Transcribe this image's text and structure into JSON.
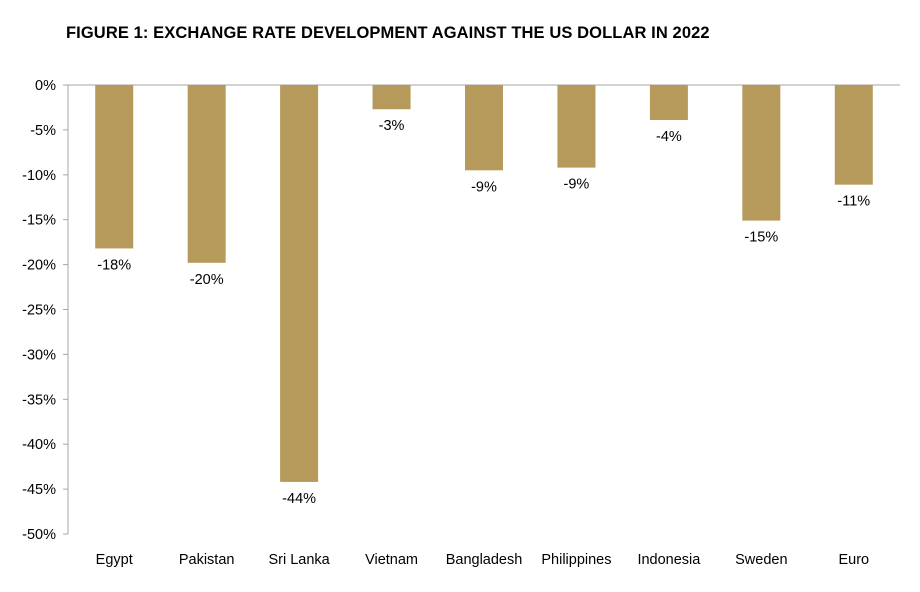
{
  "title": "FIGURE 1: EXCHANGE RATE DEVELOPMENT AGAINST THE US DOLLAR IN 2022",
  "colors": {
    "bar": "#B69A5B",
    "axis": "#A6A6A6"
  },
  "chart_data": {
    "type": "bar",
    "title": "FIGURE 1: EXCHANGE RATE DEVELOPMENT AGAINST THE US DOLLAR IN 2022",
    "xlabel": "",
    "ylabel": "",
    "ylim": [
      -50,
      0
    ],
    "yticks": [
      0,
      -5,
      -10,
      -15,
      -20,
      -25,
      -30,
      -35,
      -40,
      -45,
      -50
    ],
    "ytick_labels": [
      "0%",
      "-5%",
      "-10%",
      "-15%",
      "-20%",
      "-25%",
      "-30%",
      "-35%",
      "-40%",
      "-45%",
      "-50%"
    ],
    "categories": [
      "Egypt",
      "Pakistan",
      "Sri Lanka",
      "Vietnam",
      "Bangladesh",
      "Philippines",
      "Indonesia",
      "Sweden",
      "Euro"
    ],
    "values": [
      -18.2,
      -19.8,
      -44.2,
      -2.7,
      -9.5,
      -9.2,
      -3.9,
      -15.1,
      -11.1
    ],
    "data_labels": [
      "-18%",
      "-20%",
      "-44%",
      "-3%",
      "-9%",
      "-9%",
      "-4%",
      "-15%",
      "-11%"
    ],
    "grid": false,
    "legend": "none"
  }
}
